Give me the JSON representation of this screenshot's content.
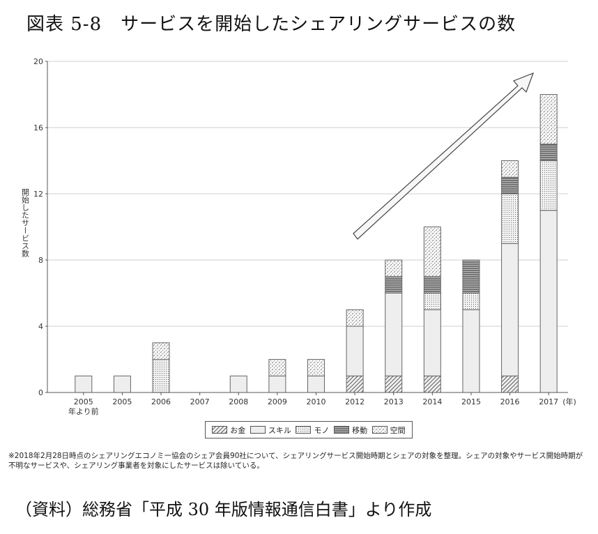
{
  "figure_title": "図表 5-8　サービスを開始したシェアリングサービスの数",
  "note": "※2018年2月28日時点のシェアリングエコノミー協会のシェア会員90社について、シェアリングサービス開始時期とシェアの対象を整理。シェアの対象やサービス開始時期が不明なサービスや、シェアリング事業者を対象にしたサービスは除いている。",
  "source": "（資料）総務省「平成 30 年版情報通信白書」より作成",
  "chart_data": {
    "type": "bar",
    "stacked": true,
    "title": "",
    "xlabel": "",
    "x_unit_label": "(年)",
    "ylabel": "開始したサービス数",
    "ylim": [
      0,
      20
    ],
    "yticks": [
      0,
      4,
      8,
      12,
      16,
      20
    ],
    "grid": true,
    "legend_position": "bottom",
    "categories": [
      [
        "2005",
        "年より前"
      ],
      [
        "2005"
      ],
      [
        "2006"
      ],
      [
        "2007"
      ],
      [
        "2008"
      ],
      [
        "2009"
      ],
      [
        "2010"
      ],
      [
        "2012"
      ],
      [
        "2013"
      ],
      [
        "2014"
      ],
      [
        "2015"
      ],
      [
        "2016"
      ],
      [
        "2017"
      ]
    ],
    "series": [
      {
        "name": "お金",
        "pattern": "diagonal",
        "values": [
          0,
          0,
          0,
          0,
          0,
          0,
          0,
          1,
          1,
          1,
          0,
          1,
          0
        ]
      },
      {
        "name": "スキル",
        "pattern": "plain",
        "values": [
          1,
          1,
          0,
          0,
          1,
          1,
          1,
          3,
          5,
          4,
          5,
          8,
          11
        ]
      },
      {
        "name": "モノ",
        "pattern": "dotted",
        "values": [
          0,
          0,
          2,
          0,
          0,
          0,
          0,
          0,
          0,
          1,
          1,
          3,
          3
        ]
      },
      {
        "name": "移動",
        "pattern": "hlines",
        "values": [
          0,
          0,
          0,
          0,
          0,
          0,
          0,
          0,
          1,
          1,
          2,
          1,
          1
        ]
      },
      {
        "name": "空間",
        "pattern": "speckle",
        "values": [
          0,
          0,
          1,
          0,
          0,
          1,
          1,
          1,
          1,
          3,
          0,
          1,
          3
        ]
      }
    ],
    "trend_arrow": true,
    "colors": {
      "bar_fill": "#efefef",
      "bar_stroke": "#666666",
      "grid": "#cfcfcf"
    }
  }
}
